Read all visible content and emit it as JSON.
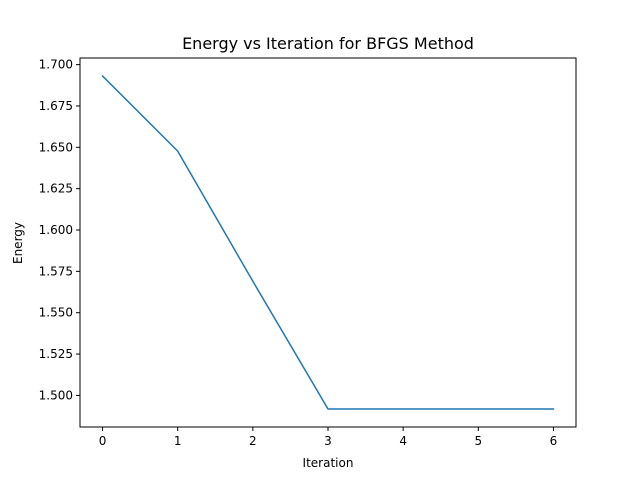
{
  "chart_data": {
    "type": "line",
    "title": "Energy vs Iteration for BFGS Method",
    "xlabel": "Iteration",
    "ylabel": "Energy",
    "x": [
      0,
      1,
      2,
      3,
      4,
      5,
      6
    ],
    "series": [
      {
        "values": [
          1.6931,
          1.6477,
          1.569,
          1.4918,
          1.4918,
          1.4918,
          1.4918
        ],
        "color": "#1f77b4"
      }
    ],
    "xlim": [
      -0.3,
      6.3
    ],
    "ylim": [
      1.4809,
      1.704
    ],
    "xticks": [
      0,
      1,
      2,
      3,
      4,
      5,
      6
    ],
    "xtick_labels": [
      "0",
      "1",
      "2",
      "3",
      "4",
      "5",
      "6"
    ],
    "yticks": [
      1.5,
      1.525,
      1.55,
      1.575,
      1.6,
      1.625,
      1.65,
      1.675,
      1.7
    ],
    "ytick_labels": [
      "1.500",
      "1.525",
      "1.550",
      "1.575",
      "1.600",
      "1.625",
      "1.650",
      "1.675",
      "1.700"
    ],
    "grid": false,
    "legend": false
  }
}
